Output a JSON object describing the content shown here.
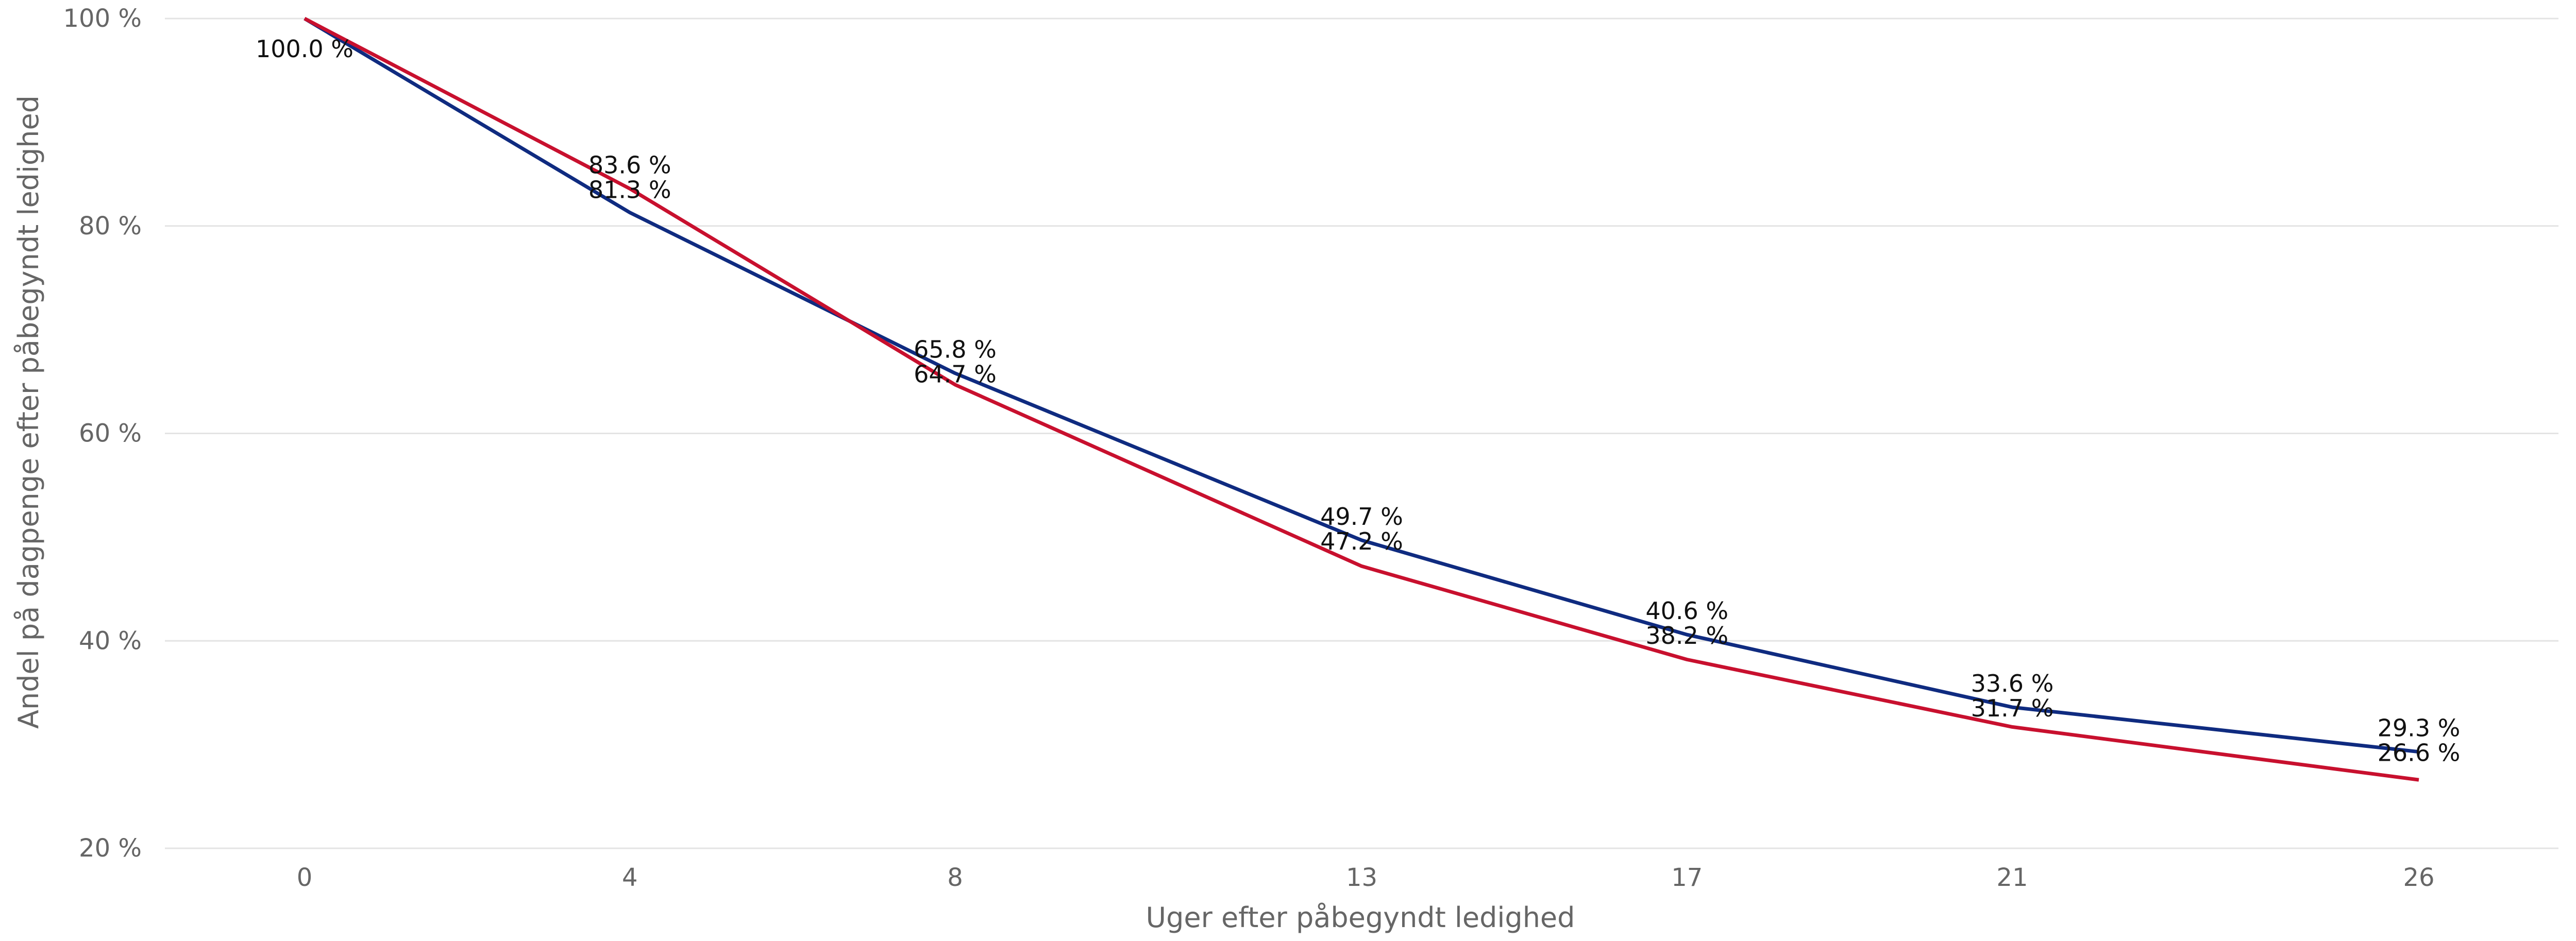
{
  "chart_data": {
    "type": "line",
    "title": "",
    "xlabel": "Uger efter påbegyndt ledighed",
    "ylabel": "Andel på dagpenge efter påbegyndt ledighed",
    "x": [
      0,
      4,
      8,
      13,
      17,
      21,
      26
    ],
    "x_tick_labels": [
      "0",
      "4",
      "8",
      "13",
      "17",
      "21",
      "26"
    ],
    "ylim": [
      20,
      100
    ],
    "y_tick_labels": [
      "20 %",
      "40 %",
      "60 %",
      "80 %",
      "100 %"
    ],
    "y_ticks": [
      20,
      40,
      60,
      80,
      100
    ],
    "grid": true,
    "legend": "none",
    "series": [
      {
        "color": "#0f2b80",
        "values": [
          100.0,
          81.3,
          65.8,
          49.7,
          40.6,
          33.6,
          29.3
        ],
        "labels": [
          "100.0 %",
          "81.3 %",
          "65.8 %",
          "49.7 %",
          "40.6 %",
          "33.6 %",
          "29.3 %"
        ]
      },
      {
        "color": "#c8102e",
        "values": [
          100.0,
          83.6,
          64.7,
          47.2,
          38.2,
          31.7,
          26.6
        ],
        "labels": [
          "",
          "83.6 %",
          "64.7 %",
          "47.2 %",
          "38.2 %",
          "31.7 %",
          "26.6 %"
        ]
      }
    ]
  }
}
